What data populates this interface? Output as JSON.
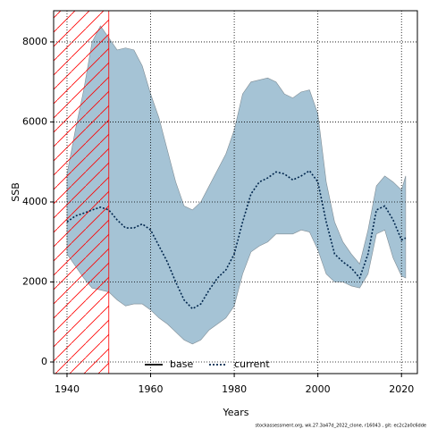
{
  "chart_data": {
    "type": "line",
    "x_label": "Years",
    "y_label": "SSB",
    "footer": "stockassessment.org, wk.27.3a47d_2022_clone, r16043 , git: ec2c2a0c6dde",
    "x": [
      1940,
      1942,
      1944,
      1946,
      1948,
      1950,
      1952,
      1954,
      1956,
      1958,
      1960,
      1962,
      1964,
      1966,
      1968,
      1970,
      1972,
      1974,
      1976,
      1978,
      1980,
      1982,
      1984,
      1986,
      1988,
      1990,
      1992,
      1994,
      1996,
      1998,
      2000,
      2002,
      2004,
      2006,
      2008,
      2010,
      2012,
      2014,
      2016,
      2018,
      2020,
      2021
    ],
    "series": [
      {
        "name": "current",
        "color": "#00264d",
        "style": "dotted",
        "values": [
          3500,
          3650,
          3720,
          3800,
          3870,
          3800,
          3550,
          3350,
          3350,
          3450,
          3300,
          2900,
          2500,
          2000,
          1550,
          1330,
          1450,
          1800,
          2100,
          2300,
          2700,
          3500,
          4200,
          4500,
          4600,
          4750,
          4700,
          4550,
          4650,
          4780,
          4500,
          3500,
          2700,
          2500,
          2350,
          2100,
          2700,
          3800,
          3900,
          3550,
          3050,
          3100
        ]
      }
    ],
    "band": {
      "color": "#a5c3d5",
      "edge": "#7f8c94",
      "upper": [
        4700,
        5800,
        6800,
        8000,
        8400,
        8100,
        7800,
        7850,
        7800,
        7400,
        6700,
        6100,
        5300,
        4500,
        3900,
        3800,
        4000,
        4400,
        4800,
        5200,
        5800,
        6700,
        7000,
        7050,
        7100,
        7000,
        6700,
        6600,
        6750,
        6800,
        6200,
        4500,
        3500,
        3000,
        2700,
        2450,
        3300,
        4400,
        4650,
        4500,
        4300,
        4650
      ],
      "lower": [
        2700,
        2400,
        2100,
        1850,
        1800,
        1750,
        1550,
        1400,
        1450,
        1450,
        1300,
        1100,
        950,
        750,
        550,
        450,
        550,
        800,
        950,
        1100,
        1400,
        2200,
        2750,
        2900,
        3000,
        3200,
        3200,
        3200,
        3300,
        3250,
        2800,
        2200,
        2000,
        2000,
        1900,
        1850,
        2200,
        3200,
        3300,
        2600,
        2150,
        2100
      ]
    },
    "hatch_x": [
      1936.8,
      1950
    ],
    "hatch_color": "#ff0000",
    "legend": [
      {
        "name": "base",
        "color": "#000000",
        "style": "solid"
      },
      {
        "name": "current",
        "color": "#00264d",
        "style": "dotted"
      }
    ],
    "xlim": [
      1936.8,
      2023.8
    ],
    "ylim": [
      -290,
      8780
    ],
    "xticks": [
      1940,
      1960,
      1980,
      2000,
      2020
    ],
    "yticks": [
      0,
      2000,
      4000,
      6000,
      8000
    ],
    "grid": true
  }
}
